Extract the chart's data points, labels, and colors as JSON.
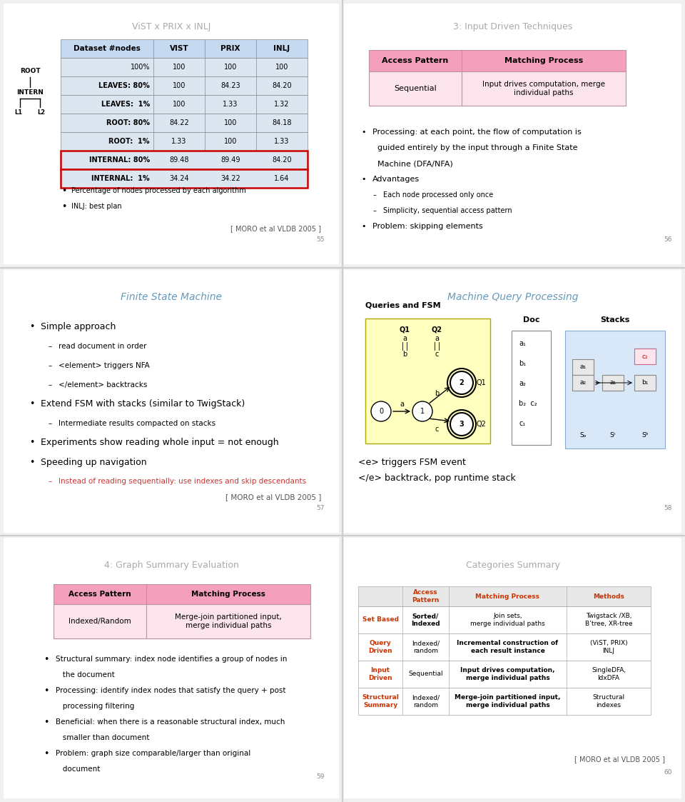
{
  "bg_color": "#f0f0f0",
  "panel_bg": "#ffffff",
  "divider_color": "#bbbbbb",
  "panel1": {
    "title": "ViST x PRIX x INLJ",
    "title_color": "#aaaaaa",
    "table_header_bg": "#c5d9f1",
    "table_row_bg": "#dce6f1",
    "headers": [
      "Dataset #nodes",
      "VIST",
      "PRIX",
      "INLJ"
    ],
    "rows": [
      [
        "100%",
        "100",
        "100",
        "100",
        false
      ],
      [
        "LEAVES: 80%",
        "100",
        "84.23",
        "84.20",
        true
      ],
      [
        "LEAVES:  1%",
        "100",
        "1.33",
        "1.32",
        true
      ],
      [
        "ROOT: 80%",
        "84.22",
        "100",
        "84.18",
        true
      ],
      [
        "ROOT:  1%",
        "1.33",
        "100",
        "1.33",
        true
      ],
      [
        "INTERNAL: 80%",
        "89.48",
        "89.49",
        "84.20",
        true
      ],
      [
        "INTERNAL:  1%",
        "34.24",
        "34.22",
        "1.64",
        true
      ]
    ],
    "highlighted_rows": [
      5,
      6
    ],
    "bullets": [
      "Percentage of nodes processed by each algorithm",
      "INLJ: best plan"
    ],
    "footnote": "[ MORO et al VLDB 2005 ]",
    "page_num": "55"
  },
  "panel2": {
    "title": "3: Input Driven Techniques",
    "title_color": "#aaaaaa",
    "table_header_bg": "#f4a0bc",
    "table_row_bg": "#fce4ec",
    "headers": [
      "Access Pattern",
      "Matching Process"
    ],
    "row_col1": "Sequential",
    "row_col2": "Input drives computation, merge\nindividual paths",
    "page_num": "56"
  },
  "panel3": {
    "title": "Finite State Machine",
    "title_color": "#6699bb",
    "footnote": "[ MORO et al VLDB 2005 ]",
    "page_num": "57"
  },
  "panel4": {
    "title": "Machine Query Processing",
    "title_color": "#6699bb",
    "page_num": "58"
  },
  "panel5": {
    "title": "4: Graph Summary Evaluation",
    "title_color": "#aaaaaa",
    "table_header_bg": "#f4a0bc",
    "table_row_bg": "#fce4ec",
    "headers": [
      "Access Pattern",
      "Matching Process"
    ],
    "row_col1": "Indexed/Random",
    "row_col2": "Merge-join partitioned input,\nmerge individual paths",
    "page_num": "59"
  },
  "panel6": {
    "title": "Categories Summary",
    "title_color": "#aaaaaa",
    "footnote": "[ MORO et al VLDB 2005 ]",
    "page_num": "60",
    "cat_rows": [
      [
        "Set Based",
        "Sorted/\nIndexed",
        "Join sets,\nmerge individual paths",
        "Twigstack /XB,\nB’tree, XR-tree"
      ],
      [
        "Query\nDriven",
        "Indexed/\nrandom",
        "Incremental construction of\neach result instance",
        "(ViST, PRIX)\nINLJ"
      ],
      [
        "Input\nDriven",
        "Sequential",
        "Input drives computation,\nmerge individual paths",
        "SingleDFA,\nIdxDFA"
      ],
      [
        "Structural\nSummary",
        "Indexed/\nrandom",
        "Merge-join partitioned input,\nmerge individual paths",
        "Structural\nindexes"
      ]
    ],
    "bold_col2": [
      false,
      true,
      true,
      true
    ]
  }
}
